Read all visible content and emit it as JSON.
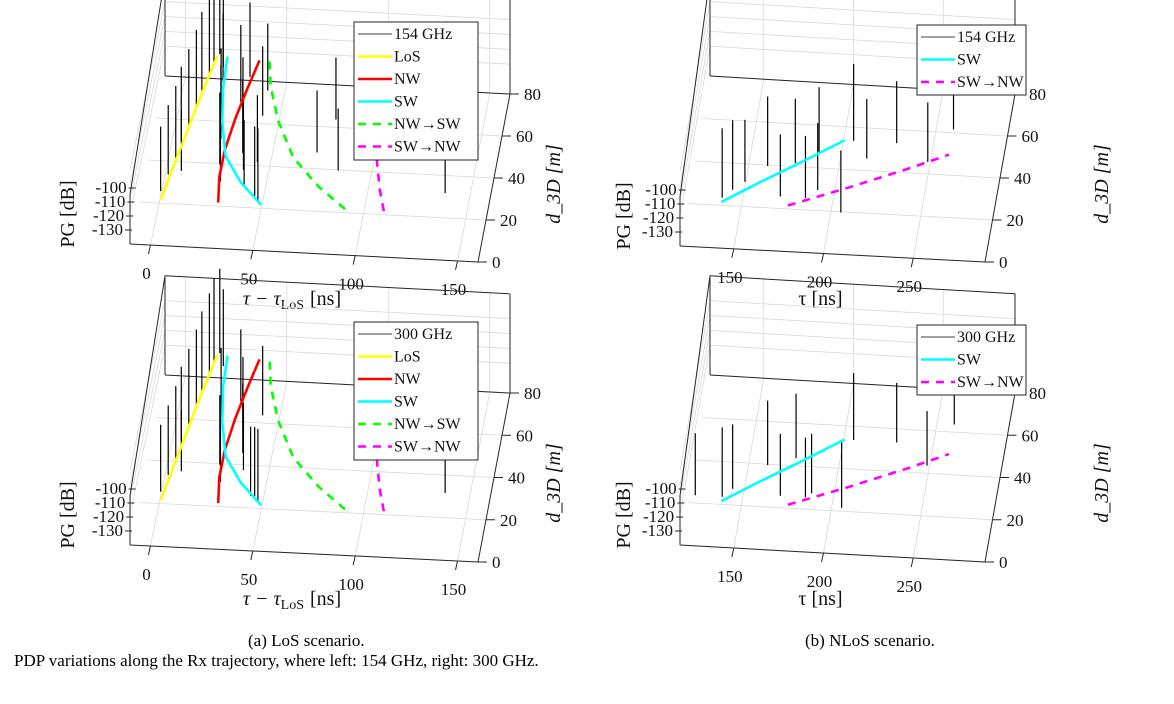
{
  "figure": {
    "subcaptions": {
      "a": "(a) LoS scenario.",
      "b": "(b) NLoS scenario."
    },
    "caption": "PDP variations along the Rx trajectory, where left: 154 GHz, right: 300 GHz."
  },
  "colors": {
    "pdp": "#000000",
    "LoS": "#ffff00",
    "NW": "#ff0000",
    "SW": "#00ffff",
    "NW→SW": "#00ff00",
    "SW→NW": "#ff00ff",
    "grid": "#d9d9d9",
    "axis": "#262626"
  },
  "chart_data": [
    {
      "id": "los-154",
      "type": "line",
      "view": "3d",
      "scenario": "LoS",
      "xlabel": "τ − τ_LoS [ns]",
      "xlabel_main": "τ − τ",
      "xlabel_sub": "LoS",
      "xlabel_unit": "[ns]",
      "ylabel": "d_3D [m]",
      "zlabel": "PG [dB]",
      "xlim": [
        -10,
        160
      ],
      "ylim": [
        0,
        80
      ],
      "zlim": [
        -140,
        -60
      ],
      "xticks": [
        0,
        50,
        100,
        150
      ],
      "yticks": [
        0,
        20,
        40,
        60,
        80
      ],
      "zticks": [
        -100,
        -110,
        -120,
        -130
      ],
      "grid": true,
      "legend_position": "top-right",
      "legend": [
        {
          "label": "154 GHz",
          "style": "thin-solid",
          "color_key": "pdp"
        },
        {
          "label": "LoS",
          "style": "solid",
          "color_key": "LoS"
        },
        {
          "label": "NW",
          "style": "solid",
          "color_key": "NW"
        },
        {
          "label": "SW",
          "style": "solid",
          "color_key": "SW"
        },
        {
          "label": "NW→SW",
          "style": "dashed",
          "color_key": "NW→SW"
        },
        {
          "label": "SW→NW",
          "style": "dashed",
          "color_key": "SW→NW"
        }
      ],
      "series": [
        {
          "name": "LoS",
          "style": "solid",
          "x": [
            3,
            5,
            8,
            11,
            14,
            16
          ],
          "y": [
            10,
            22,
            38,
            55,
            70,
            79
          ],
          "z": [
            -120,
            -118,
            -116,
            -114,
            -112,
            -110
          ]
        },
        {
          "name": "NW",
          "style": "solid",
          "x": [
            31,
            29,
            29,
            31,
            34,
            37
          ],
          "y": [
            10,
            22,
            35,
            50,
            65,
            78
          ],
          "z": [
            -120,
            -118,
            -116,
            -114,
            -112,
            -110
          ]
        },
        {
          "name": "SW",
          "style": "solid",
          "x": [
            52,
            40,
            30,
            25,
            22,
            21
          ],
          "y": [
            10,
            20,
            32,
            48,
            64,
            79
          ],
          "z": [
            -120,
            -118,
            -116,
            -114,
            -112,
            -110
          ]
        },
        {
          "name": "NW→SW",
          "style": "dashed",
          "x": [
            93,
            78,
            63,
            52,
            45,
            42
          ],
          "y": [
            10,
            20,
            33,
            50,
            66,
            78
          ],
          "z": [
            -120,
            -118,
            -116,
            -114,
            -112,
            -110
          ]
        },
        {
          "name": "SW→NW",
          "style": "dashed",
          "x": [
            112,
            108,
            104,
            101,
            99,
            98
          ],
          "y": [
            10,
            20,
            33,
            50,
            66,
            78
          ],
          "z": [
            -120,
            -118,
            -116,
            -114,
            -112,
            -110
          ]
        }
      ],
      "impulses": [
        {
          "x": 2,
          "y": 14,
          "z": -108
        },
        {
          "x": 4,
          "y": 22,
          "z": -104
        },
        {
          "x": 6,
          "y": 30,
          "z": -102
        },
        {
          "x": 7,
          "y": 38,
          "z": -100
        },
        {
          "x": 9,
          "y": 46,
          "z": -99
        },
        {
          "x": 11,
          "y": 54,
          "z": -97
        },
        {
          "x": 12,
          "y": 62,
          "z": -96
        },
        {
          "x": 14,
          "y": 70,
          "z": -95
        },
        {
          "x": 15,
          "y": 76,
          "z": -93
        },
        {
          "x": 17,
          "y": 80,
          "z": -92
        },
        {
          "x": 10,
          "y": 24,
          "z": -110
        },
        {
          "x": 20,
          "y": 74,
          "z": -96
        },
        {
          "x": 22,
          "y": 64,
          "z": -100
        },
        {
          "x": 24,
          "y": 50,
          "z": -104
        },
        {
          "x": 26,
          "y": 40,
          "z": -100
        },
        {
          "x": 28,
          "y": 28,
          "z": -102
        },
        {
          "x": 30,
          "y": 20,
          "z": -104
        },
        {
          "x": 32,
          "y": 58,
          "z": -98
        },
        {
          "x": 34,
          "y": 70,
          "z": -100
        },
        {
          "x": 36,
          "y": 44,
          "z": -100
        },
        {
          "x": 38,
          "y": 34,
          "z": -102
        },
        {
          "x": 40,
          "y": 26,
          "z": -104
        },
        {
          "x": 42,
          "y": 18,
          "z": -106
        },
        {
          "x": 44,
          "y": 52,
          "z": -104
        },
        {
          "x": 46,
          "y": 30,
          "z": -106
        },
        {
          "x": 48,
          "y": 14,
          "z": -104
        },
        {
          "x": 50,
          "y": 12,
          "z": -102
        },
        {
          "x": 44,
          "y": 64,
          "z": -106
        },
        {
          "x": 80,
          "y": 52,
          "z": -110
        },
        {
          "x": 74,
          "y": 36,
          "z": -110
        },
        {
          "x": 86,
          "y": 28,
          "z": -110
        },
        {
          "x": 140,
          "y": 20,
          "z": -106
        }
      ]
    },
    {
      "id": "nlos-154",
      "type": "line",
      "view": "3d",
      "scenario": "NLoS",
      "xlabel": "τ [ns]",
      "ylabel": "d_3D [m]",
      "zlabel": "PG [dB]",
      "xlim": [
        120,
        290
      ],
      "ylim": [
        0,
        80
      ],
      "zlim": [
        -140,
        -60
      ],
      "xticks": [
        150,
        200,
        250
      ],
      "yticks": [
        0,
        20,
        40,
        60,
        80
      ],
      "zticks": [
        -100,
        -110,
        -120,
        -130
      ],
      "grid": true,
      "legend_position": "top-right",
      "legend": [
        {
          "label": "154 GHz",
          "style": "thin-solid",
          "color_key": "pdp"
        },
        {
          "label": "SW",
          "style": "solid",
          "color_key": "SW"
        },
        {
          "label": "SW→NW",
          "style": "dashed",
          "color_key": "SW→NW"
        }
      ],
      "series": [
        {
          "name": "SW",
          "style": "solid",
          "x": [
            141,
            160,
            180,
            203
          ],
          "y": [
            10,
            20,
            30,
            42
          ],
          "z": [
            -120,
            -119,
            -118,
            -117
          ]
        },
        {
          "name": "SW→NW",
          "style": "dashed",
          "x": [
            178,
            210,
            240,
            262
          ],
          "y": [
            10,
            20,
            30,
            38
          ],
          "z": [
            -120,
            -119,
            -118,
            -117
          ]
        }
      ],
      "impulses": [
        {
          "x": 141,
          "y": 12,
          "z": -104
        },
        {
          "x": 146,
          "y": 16,
          "z": -104
        },
        {
          "x": 152,
          "y": 20,
          "z": -110
        },
        {
          "x": 163,
          "y": 28,
          "z": -104
        },
        {
          "x": 178,
          "y": 30,
          "z": -108
        },
        {
          "x": 190,
          "y": 36,
          "z": -108
        },
        {
          "x": 173,
          "y": 14,
          "z": -110
        },
        {
          "x": 187,
          "y": 14,
          "z": -110
        },
        {
          "x": 193,
          "y": 18,
          "z": -106
        },
        {
          "x": 208,
          "y": 42,
          "z": -98
        },
        {
          "x": 208,
          "y": 8,
          "z": -110
        },
        {
          "x": 217,
          "y": 34,
          "z": -112
        },
        {
          "x": 232,
          "y": 42,
          "z": -110
        },
        {
          "x": 251,
          "y": 34,
          "z": -112
        },
        {
          "x": 262,
          "y": 50,
          "z": -108
        }
      ]
    },
    {
      "id": "los-300",
      "type": "line",
      "view": "3d",
      "scenario": "LoS",
      "xlabel": "τ − τ_LoS [ns]",
      "xlabel_main": "τ − τ",
      "xlabel_sub": "LoS",
      "xlabel_unit": "[ns]",
      "ylabel": "d_3D [m]",
      "zlabel": "PG [dB]",
      "xlim": [
        -10,
        160
      ],
      "ylim": [
        0,
        80
      ],
      "zlim": [
        -140,
        -60
      ],
      "xticks": [
        0,
        50,
        100,
        150
      ],
      "yticks": [
        0,
        20,
        40,
        60,
        80
      ],
      "zticks": [
        -100,
        -110,
        -120,
        -130
      ],
      "grid": true,
      "legend_position": "top-right",
      "legend": [
        {
          "label": "300 GHz",
          "style": "thin-solid",
          "color_key": "pdp"
        },
        {
          "label": "LoS",
          "style": "solid",
          "color_key": "LoS"
        },
        {
          "label": "NW",
          "style": "solid",
          "color_key": "NW"
        },
        {
          "label": "SW",
          "style": "solid",
          "color_key": "SW"
        },
        {
          "label": "NW→SW",
          "style": "dashed",
          "color_key": "NW→SW"
        },
        {
          "label": "SW→NW",
          "style": "dashed",
          "color_key": "SW→NW"
        }
      ],
      "series": [
        {
          "name": "LoS",
          "style": "solid",
          "x": [
            3,
            5,
            8,
            11,
            14,
            16
          ],
          "y": [
            10,
            22,
            38,
            55,
            70,
            79
          ],
          "z": [
            -120,
            -118,
            -116,
            -114,
            -112,
            -110
          ]
        },
        {
          "name": "NW",
          "style": "solid",
          "x": [
            31,
            29,
            29,
            31,
            34,
            37
          ],
          "y": [
            10,
            22,
            35,
            50,
            65,
            78
          ],
          "z": [
            -120,
            -118,
            -116,
            -114,
            -112,
            -110
          ]
        },
        {
          "name": "SW",
          "style": "solid",
          "x": [
            52,
            40,
            30,
            25,
            22,
            21
          ],
          "y": [
            10,
            20,
            32,
            48,
            64,
            79
          ],
          "z": [
            -120,
            -118,
            -116,
            -114,
            -112,
            -110
          ]
        },
        {
          "name": "NW→SW",
          "style": "dashed",
          "x": [
            93,
            78,
            63,
            52,
            45,
            42
          ],
          "y": [
            10,
            20,
            33,
            50,
            66,
            78
          ],
          "z": [
            -120,
            -118,
            -116,
            -114,
            -112,
            -110
          ]
        },
        {
          "name": "SW→NW",
          "style": "dashed",
          "x": [
            112,
            108,
            104,
            101,
            99,
            98
          ],
          "y": [
            10,
            20,
            33,
            50,
            66,
            78
          ],
          "z": [
            -120,
            -118,
            -116,
            -114,
            -112,
            -110
          ]
        }
      ],
      "impulses": [
        {
          "x": 2,
          "y": 14,
          "z": -106
        },
        {
          "x": 4,
          "y": 22,
          "z": -104
        },
        {
          "x": 6,
          "y": 30,
          "z": -102
        },
        {
          "x": 7,
          "y": 38,
          "z": -100
        },
        {
          "x": 9,
          "y": 46,
          "z": -99
        },
        {
          "x": 11,
          "y": 54,
          "z": -97
        },
        {
          "x": 12,
          "y": 62,
          "z": -96
        },
        {
          "x": 14,
          "y": 70,
          "z": -95
        },
        {
          "x": 15,
          "y": 76,
          "z": -93
        },
        {
          "x": 17,
          "y": 80,
          "z": -92
        },
        {
          "x": 10,
          "y": 24,
          "z": -110
        },
        {
          "x": 20,
          "y": 74,
          "z": -98
        },
        {
          "x": 24,
          "y": 50,
          "z": -104
        },
        {
          "x": 28,
          "y": 28,
          "z": -104
        },
        {
          "x": 30,
          "y": 20,
          "z": -106
        },
        {
          "x": 32,
          "y": 58,
          "z": -102
        },
        {
          "x": 36,
          "y": 44,
          "z": -100
        },
        {
          "x": 38,
          "y": 34,
          "z": -104
        },
        {
          "x": 40,
          "y": 26,
          "z": -106
        },
        {
          "x": 44,
          "y": 52,
          "z": -104
        },
        {
          "x": 46,
          "y": 14,
          "z": -104
        },
        {
          "x": 48,
          "y": 14,
          "z": -104
        },
        {
          "x": 50,
          "y": 12,
          "z": -102
        },
        {
          "x": 98,
          "y": 48,
          "z": -112
        },
        {
          "x": 140,
          "y": 20,
          "z": -110
        }
      ]
    },
    {
      "id": "nlos-300",
      "type": "line",
      "view": "3d",
      "scenario": "NLoS",
      "xlabel": "τ [ns]",
      "ylabel": "d_3D [m]",
      "zlabel": "PG [dB]",
      "xlim": [
        120,
        290
      ],
      "ylim": [
        0,
        80
      ],
      "zlim": [
        -140,
        -60
      ],
      "xticks": [
        150,
        200,
        250
      ],
      "yticks": [
        0,
        20,
        40,
        60,
        80
      ],
      "zticks": [
        -100,
        -110,
        -120,
        -130
      ],
      "grid": true,
      "legend_position": "top-right",
      "legend": [
        {
          "label": "300 GHz",
          "style": "thin-solid",
          "color_key": "pdp"
        },
        {
          "label": "SW",
          "style": "solid",
          "color_key": "SW"
        },
        {
          "label": "SW→NW",
          "style": "dashed",
          "color_key": "SW→NW"
        }
      ],
      "series": [
        {
          "name": "SW",
          "style": "solid",
          "x": [
            141,
            160,
            180,
            203
          ],
          "y": [
            10,
            20,
            30,
            42
          ],
          "z": [
            -120,
            -119,
            -118,
            -117
          ]
        },
        {
          "name": "SW→NW",
          "style": "dashed",
          "x": [
            178,
            210,
            240,
            262
          ],
          "y": [
            10,
            20,
            30,
            38
          ],
          "z": [
            -120,
            -119,
            -118,
            -117
          ]
        }
      ],
      "impulses": [
        {
          "x": 126,
          "y": 12,
          "z": -110
        },
        {
          "x": 141,
          "y": 12,
          "z": -104
        },
        {
          "x": 146,
          "y": 16,
          "z": -108
        },
        {
          "x": 163,
          "y": 28,
          "z": -108
        },
        {
          "x": 178,
          "y": 32,
          "z": -108
        },
        {
          "x": 173,
          "y": 14,
          "z": -110
        },
        {
          "x": 187,
          "y": 14,
          "z": -112
        },
        {
          "x": 190,
          "y": 16,
          "z": -112
        },
        {
          "x": 208,
          "y": 42,
          "z": -106
        },
        {
          "x": 208,
          "y": 10,
          "z": -106
        },
        {
          "x": 232,
          "y": 42,
          "z": -112
        },
        {
          "x": 251,
          "y": 32,
          "z": -116
        },
        {
          "x": 262,
          "y": 52,
          "z": -112
        }
      ]
    }
  ]
}
